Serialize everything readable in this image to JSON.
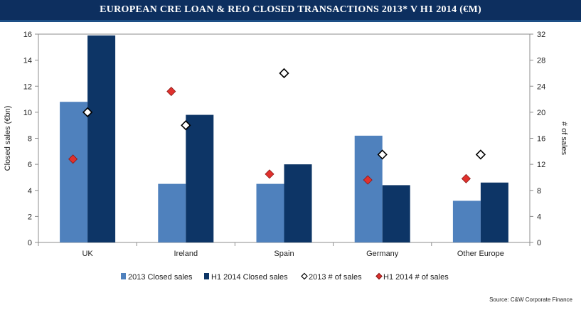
{
  "title": "EUROPEAN CRE LOAN & REO CLOSED TRANSACTIONS 2013* V H1 2014 (€M)",
  "source": "Source: C&W Corporate Finance",
  "colors": {
    "title_bg": "#0d2f5f",
    "bar_2013": "#4f81bd",
    "bar_h1_2014": "#0d3566",
    "marker_2013_fill": "#ffffff",
    "marker_h1_2014_fill": "#e0312d"
  },
  "chart_data": {
    "type": "bar",
    "title": "",
    "categories": [
      "UK",
      "Ireland",
      "Spain",
      "Germany",
      "Other Europe"
    ],
    "ylabel": "Closed sales (€bn)",
    "y2label": "# of sales",
    "ylim": [
      0,
      16
    ],
    "y2lim": [
      0,
      32
    ],
    "yticks": [
      "0",
      "2",
      "4",
      "6",
      "8",
      "10",
      "12",
      "14",
      "16"
    ],
    "y2ticks": [
      "0",
      "4",
      "8",
      "12",
      "16",
      "20",
      "24",
      "28",
      "32"
    ],
    "grid": false,
    "legend_position": "bottom",
    "series": [
      {
        "name": "2013 Closed sales",
        "kind": "bar",
        "axis": "left",
        "values": [
          10.8,
          4.5,
          4.5,
          8.2,
          3.2
        ]
      },
      {
        "name": "H1 2014 Closed sales",
        "kind": "bar",
        "axis": "left",
        "values": [
          15.9,
          9.8,
          6.0,
          4.4,
          4.6
        ]
      },
      {
        "name": "2013 # of sales",
        "kind": "marker",
        "axis": "right",
        "values": [
          20,
          18,
          26,
          13.5,
          13.5
        ]
      },
      {
        "name": "H1 2014 # of sales",
        "kind": "marker",
        "axis": "right",
        "values": [
          12.8,
          23.2,
          10.5,
          9.6,
          9.8
        ]
      }
    ]
  }
}
